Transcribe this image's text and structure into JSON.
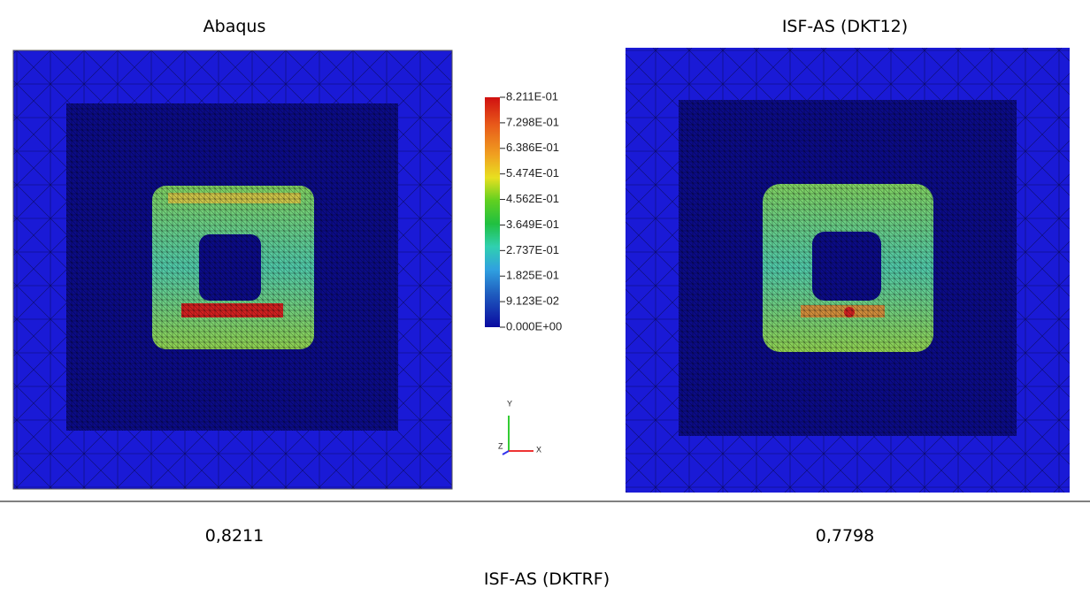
{
  "panels": [
    {
      "title": "Abaqus",
      "value": "0,8211"
    },
    {
      "title": "ISF-AS (DKT12)",
      "value": "0,7798"
    }
  ],
  "legend": {
    "labels": [
      "8.211E-01",
      "7.298E-01",
      "6.386E-01",
      "5.474E-01",
      "4.562E-01",
      "3.649E-01",
      "2.737E-01",
      "1.825E-01",
      "9.123E-02",
      "0.000E+00"
    ]
  },
  "triad": {
    "y": "Y",
    "z": "Z",
    "x": "X"
  },
  "caption": "ISF-AS (DKTRF)"
}
